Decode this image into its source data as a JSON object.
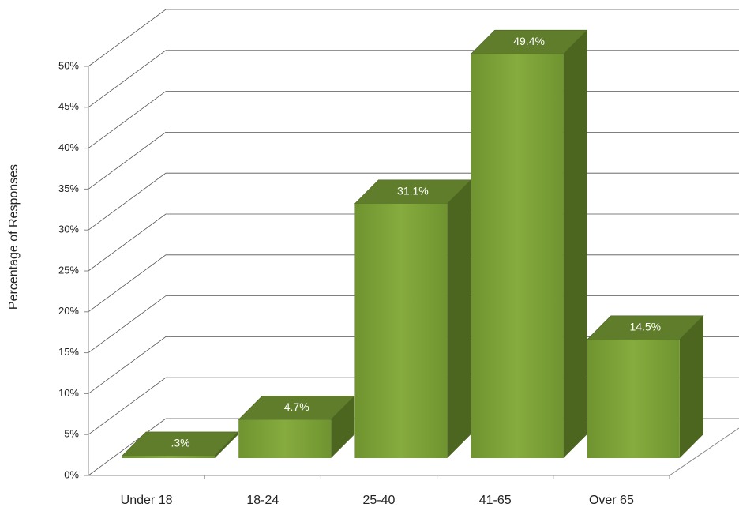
{
  "chart_data": {
    "type": "bar3d",
    "y_label": "Percentage of Responses",
    "categories": [
      "Under 18",
      "18-24",
      "25-40",
      "41-65",
      "Over 65"
    ],
    "values": [
      0.3,
      4.7,
      31.1,
      49.4,
      14.5
    ],
    "value_labels": [
      ".3%",
      "4.7%",
      "31.1%",
      "49.4%",
      "14.5%"
    ],
    "color": "#7ea33a",
    "ylim": [
      0,
      50
    ],
    "yticks": [
      {
        "value": 0,
        "label": "0%"
      },
      {
        "value": 5,
        "label": "5%"
      },
      {
        "value": 10,
        "label": "10%"
      },
      {
        "value": 15,
        "label": "15%"
      },
      {
        "value": 20,
        "label": "20%"
      },
      {
        "value": 25,
        "label": "25%"
      },
      {
        "value": 30,
        "label": "30%"
      },
      {
        "value": 35,
        "label": "35%"
      },
      {
        "value": 40,
        "label": "40%"
      },
      {
        "value": 45,
        "label": "45%"
      },
      {
        "value": 50,
        "label": "50%"
      }
    ],
    "grid": true
  }
}
